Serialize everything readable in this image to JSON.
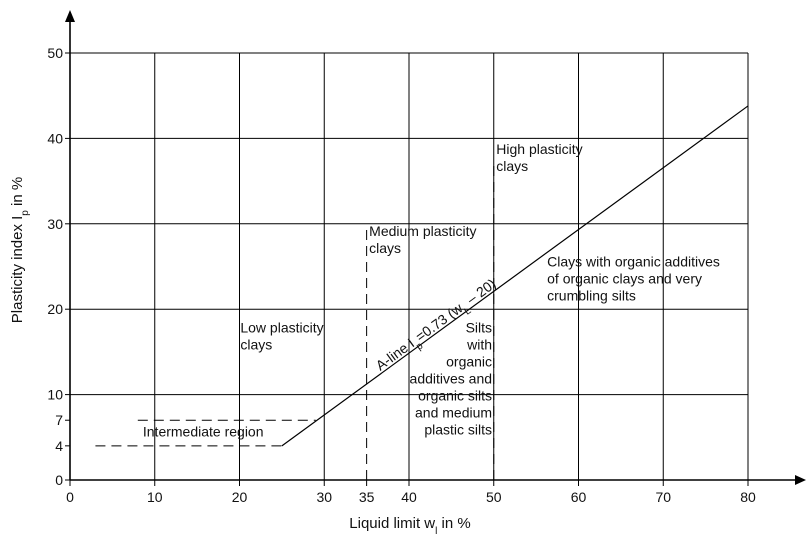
{
  "chart_data": {
    "type": "line",
    "xlabel": {
      "main": "Liquid limit w",
      "sub": "l",
      "suffix": " in %"
    },
    "ylabel": {
      "main": "Plasticity index I",
      "sub": "p",
      "suffix": " in %"
    },
    "xlim": [
      0,
      80
    ],
    "ylim": [
      0,
      50
    ],
    "x_ticks": [
      0,
      10,
      20,
      30,
      35,
      40,
      50,
      60,
      70,
      80
    ],
    "y_ticks": [
      0,
      4,
      7,
      10,
      20,
      30,
      40,
      50
    ],
    "x_grid": [
      10,
      20,
      30,
      40,
      50,
      60,
      70,
      80
    ],
    "y_grid": [
      10,
      20,
      30,
      40,
      50
    ],
    "a_line": {
      "label_main": "A-line I",
      "label_sub": "p",
      "label_eq": "=0.73 (w",
      "label_sub2": "L",
      "label_end": " – 20)",
      "x": [
        25,
        80
      ],
      "y": [
        4,
        43.8
      ]
    },
    "boundaries": [
      {
        "name": "x=35",
        "x": [
          35,
          35
        ],
        "y": [
          0,
          30
        ]
      },
      {
        "name": "x=50",
        "x": [
          50,
          50
        ],
        "y": [
          0,
          37
        ]
      },
      {
        "name": "y=4",
        "x": [
          3,
          25
        ],
        "y": [
          4,
          4
        ]
      },
      {
        "name": "y=7",
        "x": [
          8,
          29
        ],
        "y": [
          7,
          7
        ]
      }
    ],
    "annotations": [
      {
        "id": "intermediate",
        "lines": [
          "Intermediate region"
        ],
        "anchor": "start",
        "x": 8.6,
        "y": 5.1
      },
      {
        "id": "low",
        "lines": [
          "Low plasticity",
          "clays"
        ],
        "anchor": "start",
        "x": 20.1,
        "y": 17.3
      },
      {
        "id": "medium",
        "lines": [
          "Medium plasticity",
          "clays"
        ],
        "anchor": "start",
        "x": 35.3,
        "y": 28.6
      },
      {
        "id": "high",
        "lines": [
          "High plasticity",
          "clays"
        ],
        "anchor": "start",
        "x": 50.3,
        "y": 38.2
      },
      {
        "id": "organic-clays",
        "lines": [
          "Clays with organic additives",
          "of organic clays  and very",
          "crumbling silts"
        ],
        "anchor": "start",
        "x": 56.3,
        "y": 25.0
      },
      {
        "id": "silts",
        "lines": [
          "Silts",
          "with",
          "organic",
          "additives and",
          "organic silts",
          "and medium",
          "plastic silts"
        ],
        "anchor": "end",
        "x": 49.8,
        "y": 17.3
      }
    ]
  }
}
